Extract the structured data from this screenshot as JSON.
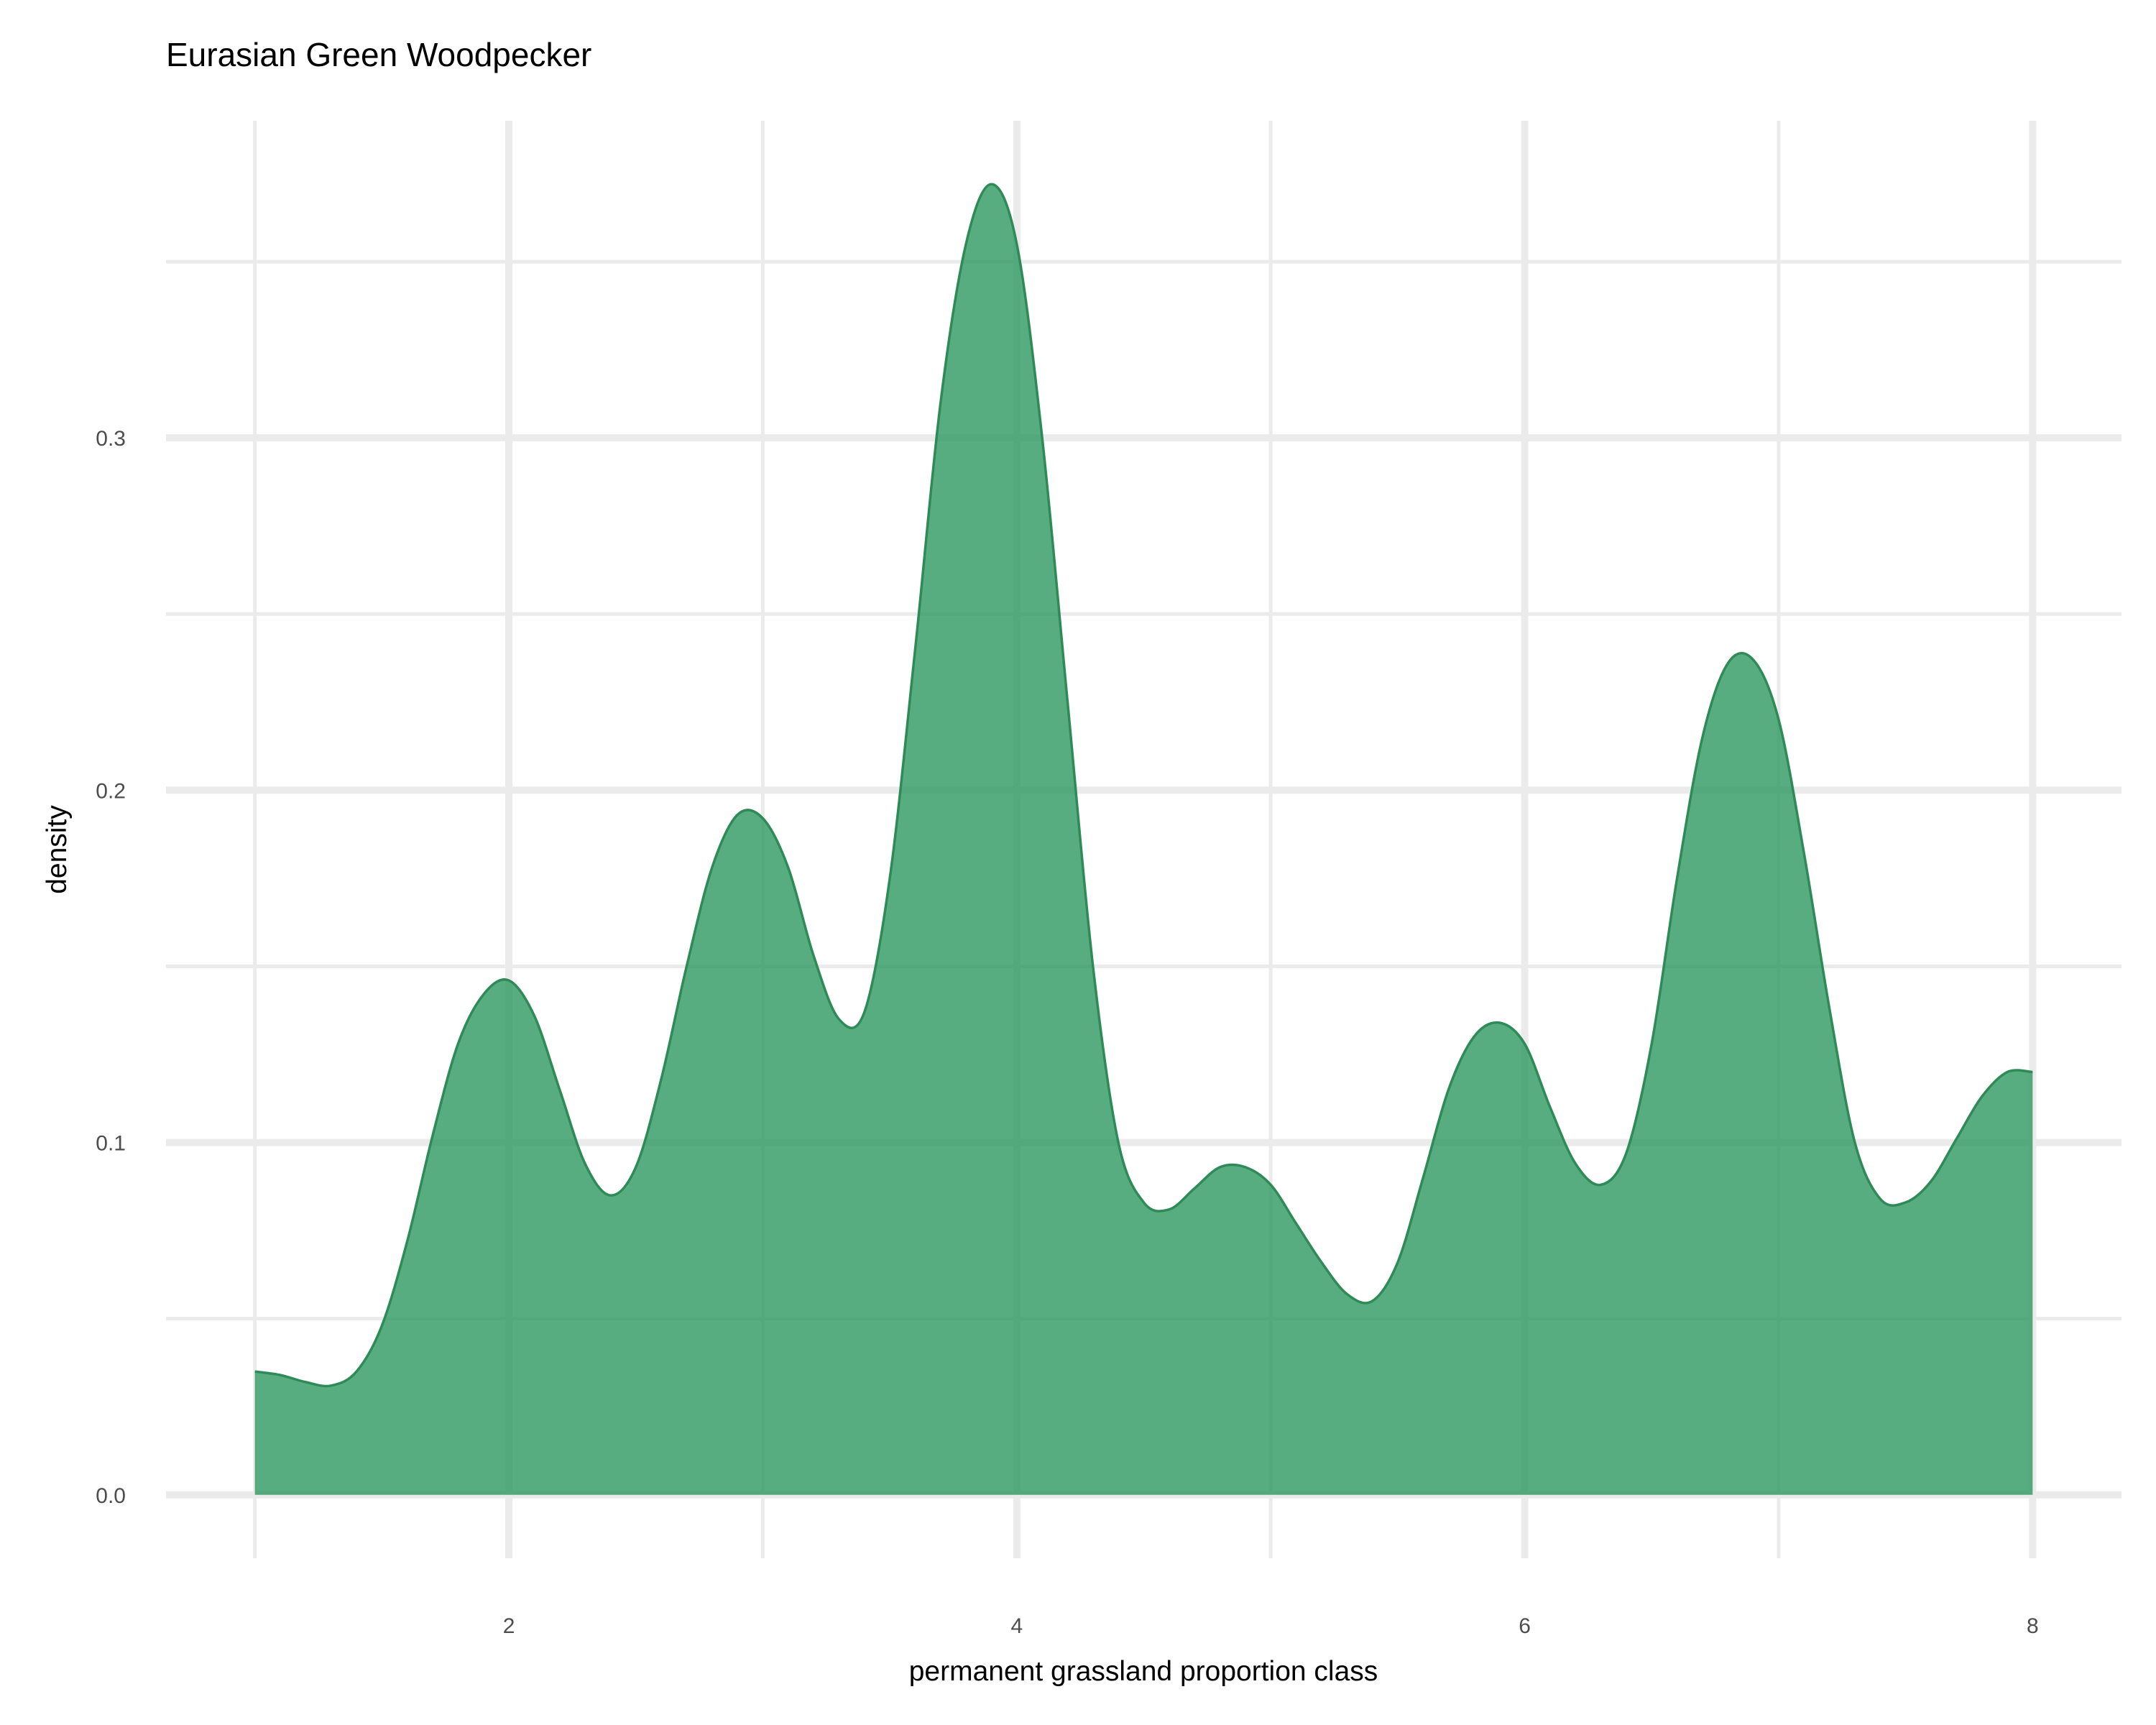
{
  "chart_data": {
    "type": "area",
    "title": "Eurasian Green Woodpecker",
    "xlabel": "permanent grassland proportion class",
    "ylabel": "density",
    "xlim": [
      0.65,
      8.35
    ],
    "ylim": [
      -0.018,
      0.39
    ],
    "x_ticks": [
      2,
      4,
      6,
      8
    ],
    "x_tick_labels": [
      "2",
      "4",
      "6",
      "8"
    ],
    "y_ticks": [
      0.0,
      0.1,
      0.2,
      0.3
    ],
    "y_tick_labels": [
      "0.0",
      "0.1",
      "0.2",
      "0.3"
    ],
    "x_minor": [
      1,
      3,
      5,
      7
    ],
    "y_minor": [
      0.05,
      0.15,
      0.25,
      0.35
    ],
    "grid": true,
    "fill_color": "#2e9960",
    "fill_opacity": 0.8,
    "line_color": "#2e8b57",
    "series": [
      {
        "x": [
          1.0,
          1.1,
          1.2,
          1.3,
          1.4,
          1.5,
          1.6,
          1.7,
          1.8,
          1.9,
          2.0,
          2.1,
          2.2,
          2.3,
          2.4,
          2.5,
          2.6,
          2.7,
          2.8,
          2.9,
          3.0,
          3.1,
          3.2,
          3.3,
          3.4,
          3.5,
          3.6,
          3.7,
          3.8,
          3.9,
          4.0,
          4.1,
          4.2,
          4.3,
          4.4,
          4.5,
          4.6,
          4.7,
          4.8,
          4.9,
          5.0,
          5.1,
          5.2,
          5.3,
          5.4,
          5.5,
          5.6,
          5.7,
          5.8,
          5.9,
          6.0,
          6.1,
          6.2,
          6.3,
          6.4,
          6.5,
          6.6,
          6.7,
          6.8,
          6.9,
          7.0,
          7.1,
          7.2,
          7.3,
          7.4,
          7.5,
          7.6,
          7.7,
          7.8,
          7.9,
          8.0
        ],
        "y": [
          0.035,
          0.034,
          0.032,
          0.031,
          0.035,
          0.048,
          0.072,
          0.102,
          0.128,
          0.142,
          0.146,
          0.136,
          0.115,
          0.094,
          0.085,
          0.093,
          0.118,
          0.15,
          0.178,
          0.193,
          0.192,
          0.178,
          0.153,
          0.135,
          0.137,
          0.175,
          0.24,
          0.31,
          0.355,
          0.372,
          0.355,
          0.3,
          0.225,
          0.15,
          0.1,
          0.083,
          0.081,
          0.087,
          0.093,
          0.093,
          0.088,
          0.077,
          0.066,
          0.057,
          0.055,
          0.066,
          0.09,
          0.115,
          0.13,
          0.134,
          0.128,
          0.11,
          0.094,
          0.088,
          0.097,
          0.128,
          0.175,
          0.215,
          0.236,
          0.237,
          0.22,
          0.182,
          0.138,
          0.1,
          0.084,
          0.083,
          0.089,
          0.101,
          0.113,
          0.12,
          0.12
        ]
      }
    ]
  }
}
